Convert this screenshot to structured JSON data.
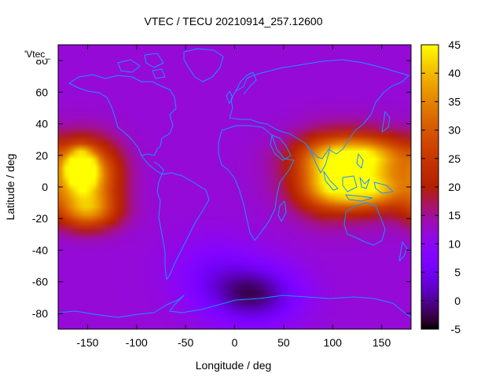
{
  "title": "VTEC / TECU 20210914_257.12600",
  "key_label": "'Vtec_",
  "xlabel": "Longitude / deg",
  "ylabel": "Latitude / deg",
  "x_ticks": [
    "-150",
    "-100",
    "-50",
    "0",
    "50",
    "100",
    "150"
  ],
  "x_tick_values": [
    -150,
    -100,
    -50,
    0,
    50,
    100,
    150
  ],
  "y_ticks": [
    "80",
    "60",
    "40",
    "20",
    "0",
    "-20",
    "-40",
    "-60",
    "-80"
  ],
  "y_tick_values": [
    80,
    60,
    40,
    20,
    0,
    -20,
    -40,
    -60,
    -80
  ],
  "colorbar_ticks": [
    "45",
    "40",
    "35",
    "30",
    "25",
    "20",
    "15",
    "10",
    "5",
    "0",
    "-5"
  ],
  "colorbar_values": [
    45,
    40,
    35,
    30,
    25,
    20,
    15,
    10,
    5,
    0,
    -5
  ],
  "colors": {
    "coastline": "#1e90ff"
  },
  "chart_data": {
    "type": "heatmap",
    "title": "VTEC / TECU 20210914_257.12600",
    "series_name": "'Vtec_",
    "xlabel": "Longitude / deg",
    "ylabel": "Latitude / deg",
    "xlim": [
      -180,
      180
    ],
    "ylim": [
      -90,
      90
    ],
    "zlim": [
      -5,
      45
    ],
    "colormap": "gnuplot-default",
    "background_value": 12,
    "features": [
      {
        "name": "pacific-crest-core",
        "lon": -157,
        "lat": 12,
        "peak": 38,
        "lon_sigma": 9,
        "lat_sigma": 7
      },
      {
        "name": "pacific-crest-band",
        "lon": -150,
        "lat": 8,
        "peak": 28,
        "lon_sigma": 22,
        "lat_sigma": 14
      },
      {
        "name": "pacific-southern-crest",
        "lon": -150,
        "lat": -15,
        "peak": 20,
        "lon_sigma": 22,
        "lat_sigma": 8
      },
      {
        "name": "asia-crest-north",
        "lon": 125,
        "lat": 20,
        "peak": 22,
        "lon_sigma": 35,
        "lat_sigma": 8
      },
      {
        "name": "asia-crest-south",
        "lon": 130,
        "lat": -2,
        "peak": 22,
        "lon_sigma": 32,
        "lat_sigma": 8
      },
      {
        "name": "asia-band",
        "lon": 120,
        "lat": 9,
        "peak": 18,
        "lon_sigma": 40,
        "lat_sigma": 16
      },
      {
        "name": "indian-ocean-band",
        "lon": 90,
        "lat": 5,
        "peak": 10,
        "lon_sigma": 20,
        "lat_sigma": 15
      },
      {
        "name": "southern-depletion",
        "lon": 20,
        "lat": -68,
        "peak": -13,
        "lon_sigma": 30,
        "lat_sigma": 12
      },
      {
        "name": "south-atlantic-low",
        "lon": -20,
        "lat": -55,
        "peak": -5,
        "lon_sigma": 30,
        "lat_sigma": 15
      }
    ]
  }
}
